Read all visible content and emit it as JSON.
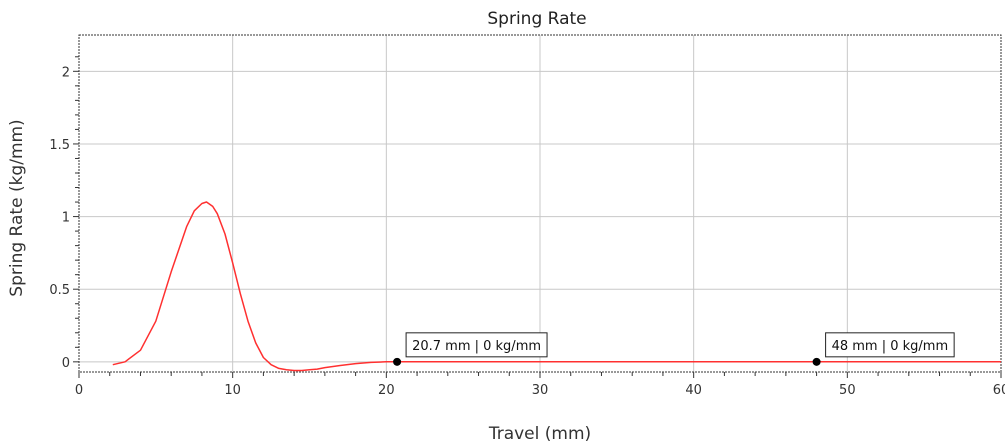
{
  "chart_data": {
    "type": "line",
    "title": "Spring Rate",
    "xlabel": "Travel (mm)",
    "ylabel": "Spring Rate (kg/mm)",
    "xlim": [
      0,
      60
    ],
    "ylim": [
      -0.07,
      2.25
    ],
    "x_ticks": [
      0,
      10,
      20,
      30,
      40,
      50,
      60
    ],
    "x_tick_labels": [
      "0",
      "10",
      "20",
      "30",
      "40",
      "50",
      "60"
    ],
    "y_ticks": [
      0,
      0.5,
      1,
      1.5,
      2
    ],
    "y_tick_labels": [
      "0",
      "0.5",
      "1",
      "1.5",
      "2"
    ],
    "grid": true,
    "series": [
      {
        "color": "#ff3030",
        "x": [
          2.2,
          3,
          4,
          5,
          6,
          7,
          7.5,
          8,
          8.3,
          8.7,
          9,
          9.5,
          10,
          10.5,
          11,
          11.5,
          12,
          12.5,
          13,
          13.5,
          14,
          14.5,
          15,
          15.5,
          16,
          17,
          18,
          19,
          20,
          20.7,
          25,
          30,
          35,
          40,
          45,
          48,
          55,
          60
        ],
        "y": [
          -0.02,
          0.0,
          0.08,
          0.28,
          0.62,
          0.93,
          1.04,
          1.09,
          1.1,
          1.07,
          1.02,
          0.88,
          0.68,
          0.47,
          0.28,
          0.13,
          0.03,
          -0.02,
          -0.045,
          -0.055,
          -0.06,
          -0.06,
          -0.055,
          -0.05,
          -0.04,
          -0.025,
          -0.012,
          -0.004,
          0.0,
          0.0,
          0.0,
          0.0,
          0.0,
          0.0,
          0.0,
          0.0,
          0.0,
          0.0
        ]
      }
    ],
    "markers": [
      {
        "x": 20.7,
        "y": 0,
        "label": "20.7 mm | 0 kg/mm"
      },
      {
        "x": 48,
        "y": 0,
        "label": "48 mm | 0 kg/mm"
      }
    ]
  }
}
